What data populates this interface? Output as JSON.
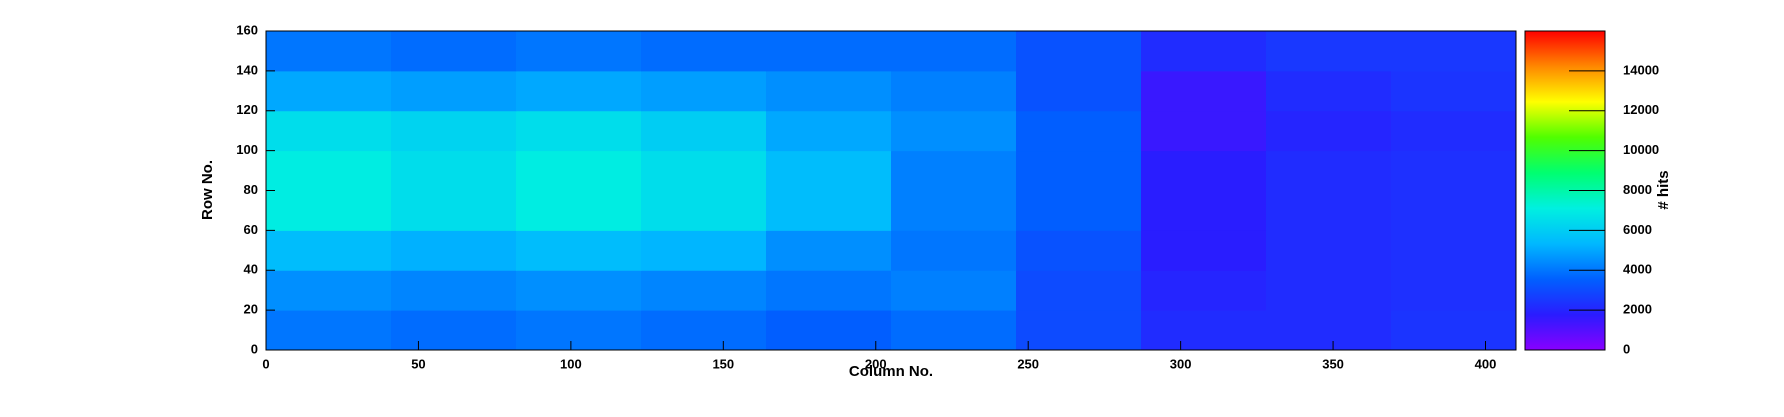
{
  "chart_data": {
    "type": "heatmap",
    "x_label": "Column No.",
    "y_label": "Row No.",
    "z_label": "# hits",
    "xbins": [
      0,
      41,
      82,
      123,
      164,
      205,
      246,
      287,
      328,
      369,
      410
    ],
    "ybins": [
      0,
      20,
      40,
      60,
      80,
      100,
      120,
      140,
      160
    ],
    "z": [
      [
        4000,
        3800,
        4000,
        3800,
        3500,
        3800,
        3000,
        2200,
        2200,
        2400
      ],
      [
        4500,
        4300,
        4500,
        4300,
        4000,
        4200,
        3000,
        2000,
        2200,
        2300
      ],
      [
        5500,
        5200,
        5500,
        5300,
        4500,
        4000,
        3200,
        1800,
        2200,
        2300
      ],
      [
        7000,
        6500,
        7000,
        6500,
        5500,
        4200,
        3500,
        1800,
        2200,
        2300
      ],
      [
        7000,
        6500,
        7000,
        6500,
        5500,
        4200,
        3500,
        1800,
        2200,
        2300
      ],
      [
        6500,
        6200,
        6500,
        6000,
        5000,
        4500,
        3500,
        1500,
        2000,
        2200
      ],
      [
        5000,
        4800,
        5000,
        4800,
        4500,
        4200,
        3200,
        1500,
        2200,
        2400
      ],
      [
        4000,
        3800,
        4000,
        3800,
        3800,
        3800,
        3200,
        2200,
        2500,
        2500
      ]
    ],
    "xlim": [
      0,
      410
    ],
    "xticks": [
      0,
      50,
      100,
      150,
      200,
      250,
      300,
      350,
      400
    ],
    "ylim": [
      0,
      160
    ],
    "yticks": [
      0,
      20,
      40,
      60,
      80,
      100,
      120,
      140,
      160
    ],
    "zlim": [
      0,
      16000
    ],
    "zticks": [
      0,
      2000,
      4000,
      6000,
      8000,
      10000,
      12000,
      14000
    ],
    "colormap": [
      "#8800ff",
      "#2a1cff",
      "#0060ff",
      "#00b8ff",
      "#00f0e0",
      "#00ff70",
      "#50ff00",
      "#ffff00",
      "#ff8800",
      "#ff0000"
    ]
  }
}
